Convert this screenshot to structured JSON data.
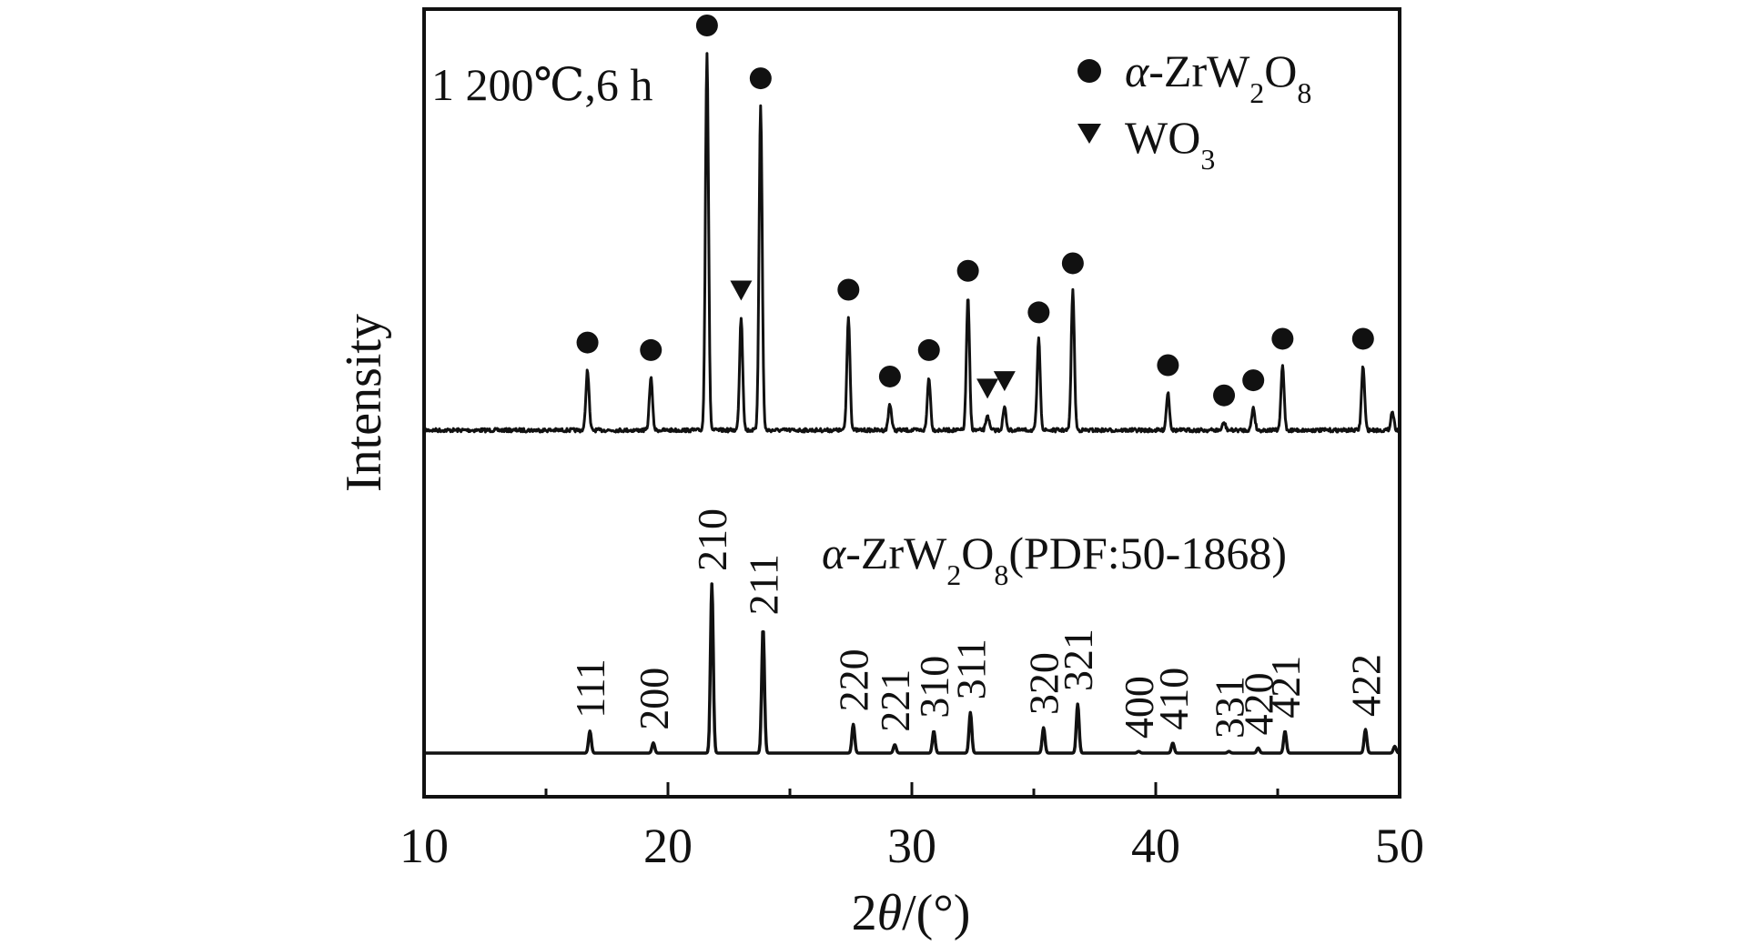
{
  "chart_data": {
    "type": "line",
    "xlabel": {
      "prefix": "2",
      "italic": "θ",
      "suffix": "/(°)"
    },
    "ylabel": "Intensity",
    "xlim": [
      10,
      50
    ],
    "xticks": [
      10,
      20,
      30,
      40,
      50
    ],
    "grid": false,
    "legend": {
      "position": "top-right",
      "entries": [
        {
          "marker": "circle",
          "label": {
            "italic": "α",
            "main": "-ZrW",
            "sub1": "2",
            "mid": "O",
            "sub2": "8"
          }
        },
        {
          "marker": "triangle-down",
          "label": {
            "main": "WO",
            "sub": "3"
          }
        }
      ]
    },
    "series": [
      {
        "annotation": "1 200℃,6 h",
        "peaks": [
          {
            "x": 16.7,
            "height": 0.16,
            "phase": "circle"
          },
          {
            "x": 19.3,
            "height": 0.14,
            "phase": "circle"
          },
          {
            "x": 21.6,
            "height": 1.0,
            "phase": "circle"
          },
          {
            "x": 23.0,
            "height": 0.3,
            "phase": "triangle"
          },
          {
            "x": 23.8,
            "height": 0.86,
            "phase": "circle"
          },
          {
            "x": 27.4,
            "height": 0.3,
            "phase": "circle"
          },
          {
            "x": 29.1,
            "height": 0.07,
            "phase": "circle"
          },
          {
            "x": 30.7,
            "height": 0.14,
            "phase": "circle"
          },
          {
            "x": 32.3,
            "height": 0.35,
            "phase": "circle"
          },
          {
            "x": 33.1,
            "height": 0.04,
            "phase": "triangle"
          },
          {
            "x": 33.8,
            "height": 0.06,
            "phase": "triangle"
          },
          {
            "x": 35.2,
            "height": 0.24,
            "phase": "circle"
          },
          {
            "x": 36.6,
            "height": 0.37,
            "phase": "circle"
          },
          {
            "x": 40.5,
            "height": 0.1,
            "phase": "circle"
          },
          {
            "x": 42.8,
            "height": 0.02,
            "phase": "circle"
          },
          {
            "x": 44.0,
            "height": 0.06,
            "phase": "circle"
          },
          {
            "x": 45.2,
            "height": 0.17,
            "phase": "circle"
          },
          {
            "x": 48.5,
            "height": 0.17,
            "phase": "circle"
          },
          {
            "x": 49.7,
            "height": 0.05,
            "phase": "none"
          }
        ]
      },
      {
        "annotation": {
          "italic": "α",
          "main": "-ZrW",
          "sub1": "2",
          "mid": "O",
          "sub2": "8",
          "tail": "(PDF:50-1868)"
        },
        "peaks": [
          {
            "x": 16.8,
            "height": 0.13,
            "hkl": "111"
          },
          {
            "x": 19.4,
            "height": 0.06,
            "hkl": "200"
          },
          {
            "x": 21.8,
            "height": 1.0,
            "hkl": "210"
          },
          {
            "x": 23.9,
            "height": 0.74,
            "hkl": "211"
          },
          {
            "x": 27.6,
            "height": 0.17,
            "hkl": "220"
          },
          {
            "x": 29.3,
            "height": 0.05,
            "hkl": "221"
          },
          {
            "x": 30.9,
            "height": 0.13,
            "hkl": "310"
          },
          {
            "x": 32.4,
            "height": 0.24,
            "hkl": "311"
          },
          {
            "x": 35.4,
            "height": 0.15,
            "hkl": "320"
          },
          {
            "x": 36.8,
            "height": 0.29,
            "hkl": "321"
          },
          {
            "x": 39.3,
            "height": 0.01,
            "hkl": "400"
          },
          {
            "x": 40.7,
            "height": 0.06,
            "hkl": "410"
          },
          {
            "x": 43.0,
            "height": 0.01,
            "hkl": "331"
          },
          {
            "x": 44.2,
            "height": 0.03,
            "hkl": "420"
          },
          {
            "x": 45.3,
            "height": 0.13,
            "hkl": "421"
          },
          {
            "x": 48.6,
            "height": 0.14,
            "hkl": "422"
          },
          {
            "x": 49.8,
            "height": 0.04,
            "hkl": ""
          }
        ]
      }
    ]
  }
}
